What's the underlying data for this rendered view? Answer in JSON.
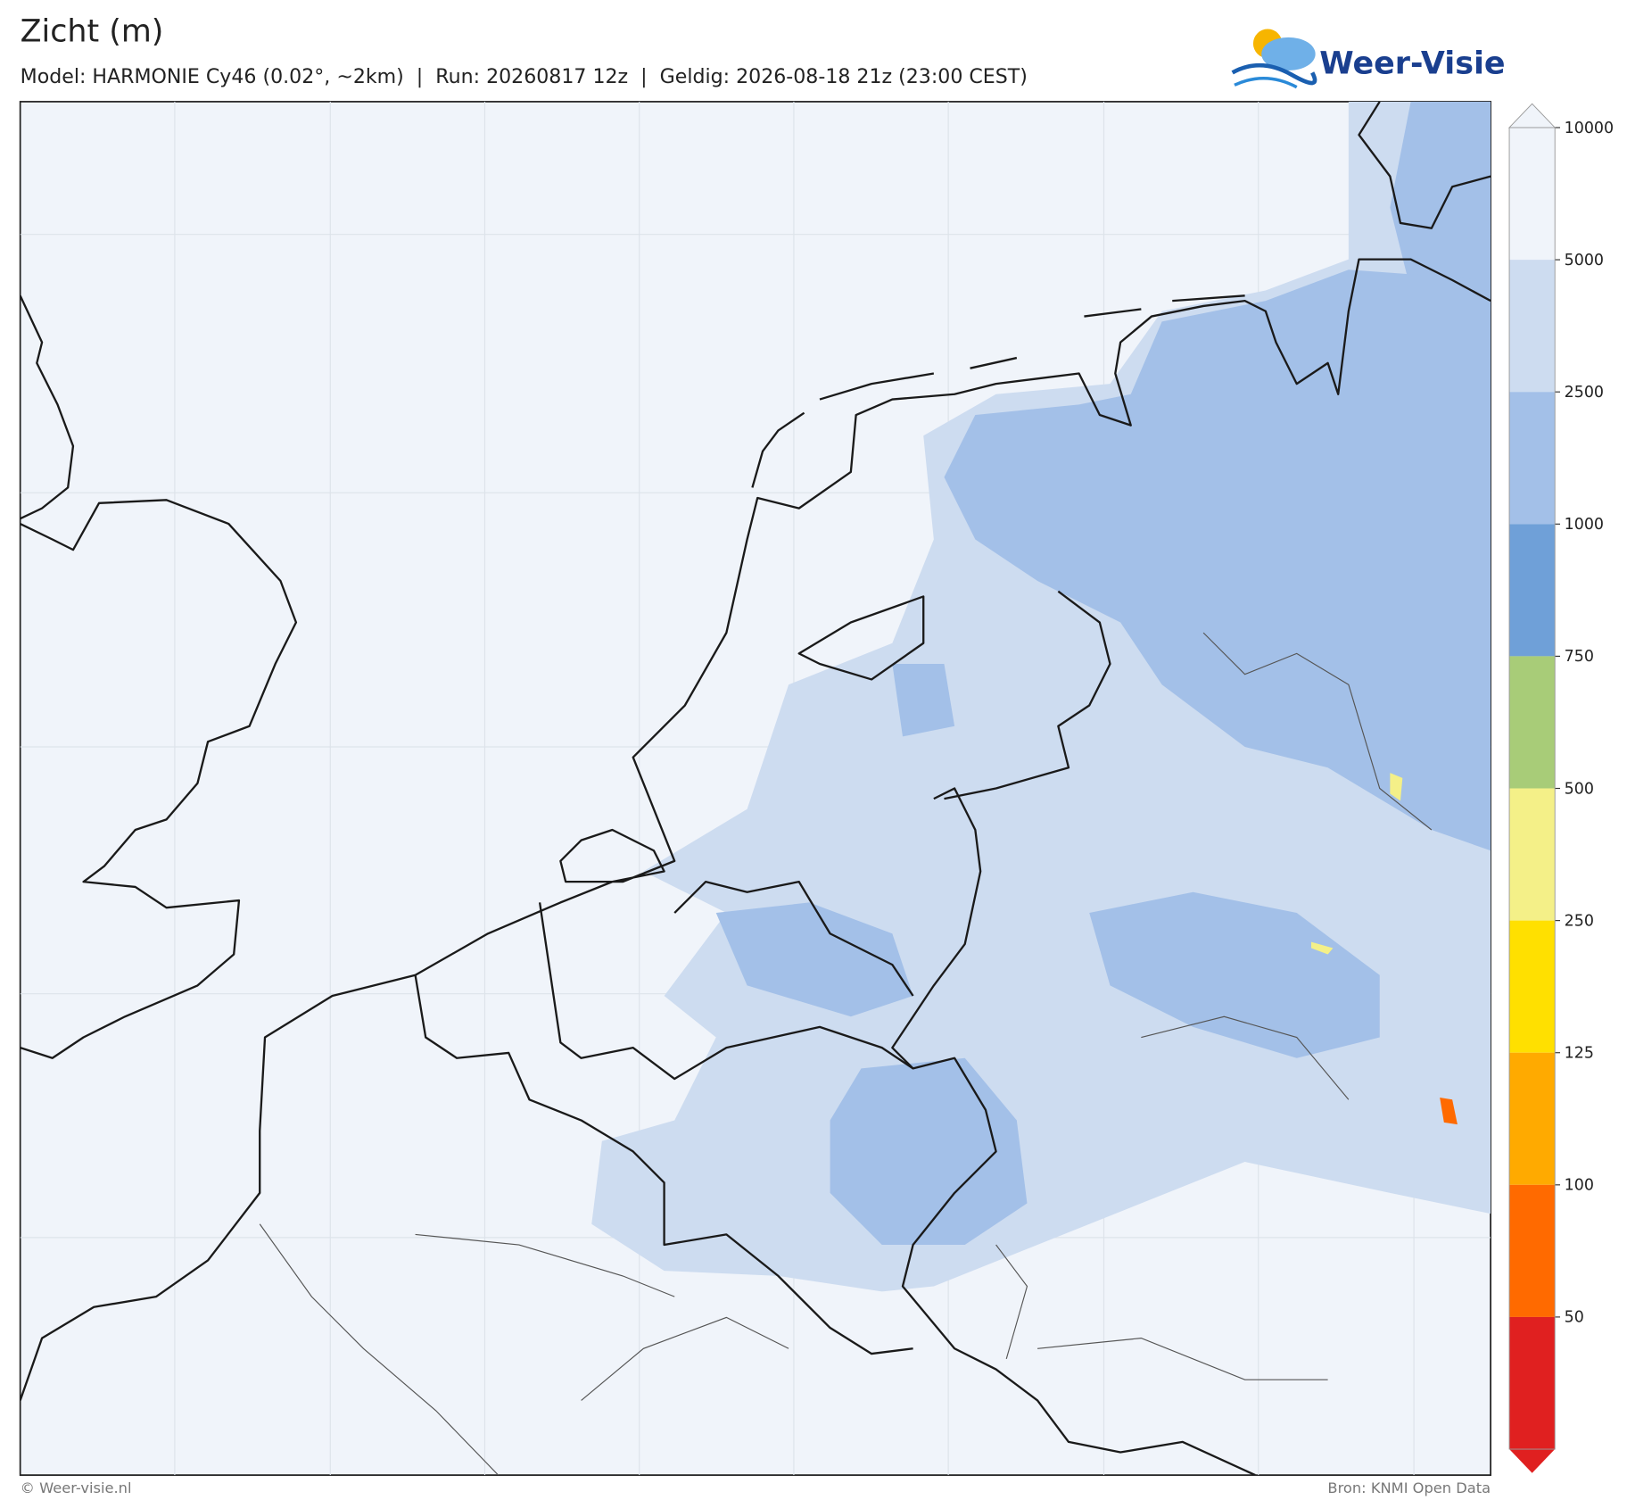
{
  "header": {
    "title": "Zicht (m)",
    "subtitle": "Model: HARMONIE Cy46 (0.02°, ~2km)  |  Run: 20260817 12z  |  Geldig: 2026-08-18 21z (23:00 CEST)",
    "logo": "Weer-Visie"
  },
  "legend": {
    "levels": [
      10000,
      5000,
      2500,
      1000,
      750,
      500,
      250,
      125,
      100,
      50
    ],
    "colors": [
      "#f0f4fa",
      "#cddcf0",
      "#a3c0e8",
      "#6fa0d8",
      "#a8cc78",
      "#f4f088",
      "#ffe000",
      "#ffaa00",
      "#ff6a00",
      "#e02020"
    ]
  },
  "footer": {
    "left": "© Weer-visie.nl",
    "right": "Bron: KNMI Open Data"
  }
}
